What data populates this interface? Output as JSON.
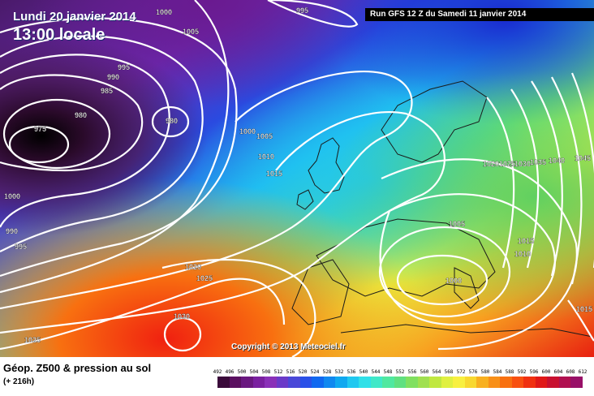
{
  "map": {
    "title_line1": "Lundi 20 janvier 2014",
    "title_line2": "13:00 locale",
    "run_info": "Run GFS 12 Z du Samedi 11 janvier 2014",
    "copyright": "Copyright © 2013 Meteociel.fr",
    "isobar_labels": [
      "1000",
      "1005",
      "995",
      "995",
      "990",
      "985",
      "980",
      "975",
      "980",
      "1000",
      "1005",
      "1010",
      "1015",
      "1000",
      "990",
      "995",
      "1020",
      "1025",
      "1030",
      "1025",
      "1005",
      "1000",
      "1015",
      "1010",
      "1020",
      "1025",
      "1030",
      "1035",
      "1040",
      "1045",
      "1015"
    ]
  },
  "footer": {
    "title": "Géop. Z500 & pression au sol",
    "subtitle": "(+ 216h)"
  },
  "legend": {
    "scale_values": [
      "492",
      "496",
      "500",
      "504",
      "508",
      "512",
      "516",
      "520",
      "524",
      "528",
      "532",
      "536",
      "540",
      "544",
      "548",
      "552",
      "556",
      "560",
      "564",
      "568",
      "572",
      "576",
      "580",
      "584",
      "588",
      "592",
      "596",
      "600",
      "604",
      "608",
      "612"
    ],
    "scale_colors": [
      "#3a0a3a",
      "#5a1060",
      "#6a1880",
      "#7a20a0",
      "#8a30b8",
      "#6a3ac8",
      "#4a48d8",
      "#2a50e8",
      "#1068f0",
      "#1088f0",
      "#10a8f0",
      "#20c8f0",
      "#30e0e8",
      "#40e8c8",
      "#50e8a0",
      "#60e080",
      "#80e060",
      "#a0e050",
      "#c0e840",
      "#e0f040",
      "#f8f040",
      "#f8d830",
      "#f8b020",
      "#f89018",
      "#f87010",
      "#f85010",
      "#f03010",
      "#e01818",
      "#c81030",
      "#b01050",
      "#981068"
    ]
  }
}
